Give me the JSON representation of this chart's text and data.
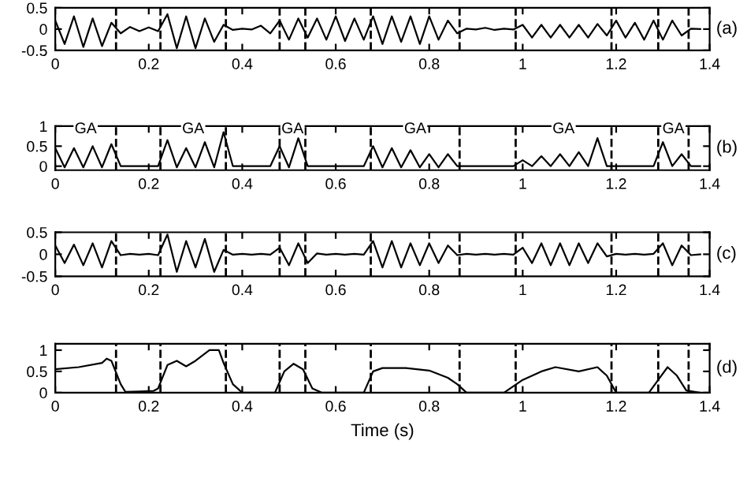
{
  "chart_data": [
    {
      "type": "line",
      "color": "#000000",
      "line_style": "solid",
      "x": [
        0,
        0.02,
        0.04,
        0.06,
        0.08,
        0.1,
        0.12,
        0.14,
        0.16,
        0.18,
        0.2,
        0.22,
        0.24,
        0.26,
        0.28,
        0.3,
        0.32,
        0.34,
        0.36,
        0.38,
        0.4,
        0.42,
        0.44,
        0.46,
        0.48,
        0.5,
        0.52,
        0.54,
        0.56,
        0.58,
        0.6,
        0.62,
        0.64,
        0.66,
        0.68,
        0.7,
        0.72,
        0.74,
        0.76,
        0.78,
        0.8,
        0.82,
        0.84,
        0.86,
        0.88,
        0.9,
        0.92,
        0.94,
        0.96,
        0.98,
        1.0,
        1.02,
        1.04,
        1.06,
        1.08,
        1.1,
        1.12,
        1.14,
        1.16,
        1.18,
        1.2,
        1.22,
        1.24,
        1.26,
        1.28,
        1.3,
        1.32,
        1.34,
        1.36,
        1.38
      ],
      "values": [
        0.2,
        -0.35,
        0.3,
        -0.42,
        0.25,
        -0.4,
        0.15,
        -0.1,
        0.05,
        -0.05,
        0.04,
        -0.05,
        0.35,
        -0.45,
        0.3,
        -0.45,
        0.25,
        -0.3,
        0.1,
        -0.02,
        0.01,
        -0.01,
        0.08,
        -0.1,
        0.2,
        -0.25,
        0.25,
        -0.2,
        0.25,
        -0.25,
        0.3,
        -0.28,
        0.25,
        -0.25,
        0.3,
        -0.35,
        0.3,
        -0.3,
        0.3,
        -0.35,
        0.3,
        -0.25,
        0.2,
        -0.1,
        0.01,
        -0.01,
        0.03,
        -0.02,
        0.01,
        -0.01,
        0.1,
        -0.2,
        0.1,
        -0.2,
        0.1,
        -0.2,
        0.1,
        -0.2,
        0.12,
        -0.15,
        0.2,
        -0.2,
        0.15,
        -0.25,
        0.2,
        -0.25,
        0.2,
        -0.15,
        0.01,
        0
      ],
      "xlim": [
        0,
        1.4
      ],
      "xticks": [
        0,
        0.2,
        0.4,
        0.6,
        0.8,
        1,
        1.2,
        1.4
      ],
      "ylim": [
        -0.5,
        0.5
      ],
      "yticks": [
        -0.5,
        0,
        0.5
      ],
      "ref_lines": [
        {
          "axis": "x",
          "value": 0.13
        },
        {
          "axis": "x",
          "value": 0.225
        },
        {
          "axis": "x",
          "value": 0.365
        },
        {
          "axis": "x",
          "value": 0.48
        },
        {
          "axis": "x",
          "value": 0.535
        },
        {
          "axis": "x",
          "value": 0.675
        },
        {
          "axis": "x",
          "value": 0.865
        },
        {
          "axis": "x",
          "value": 0.985
        },
        {
          "axis": "x",
          "value": 1.19
        },
        {
          "axis": "x",
          "value": 1.29
        },
        {
          "axis": "x",
          "value": 1.355
        }
      ],
      "annotations": [
        "(a)"
      ]
    },
    {
      "type": "line",
      "color": "#000000",
      "line_style": "solid",
      "x": [
        0,
        0.02,
        0.04,
        0.06,
        0.08,
        0.1,
        0.12,
        0.14,
        0.16,
        0.18,
        0.2,
        0.22,
        0.24,
        0.26,
        0.28,
        0.3,
        0.32,
        0.34,
        0.36,
        0.38,
        0.4,
        0.42,
        0.44,
        0.46,
        0.48,
        0.5,
        0.52,
        0.54,
        0.56,
        0.58,
        0.6,
        0.62,
        0.64,
        0.66,
        0.68,
        0.7,
        0.72,
        0.74,
        0.76,
        0.78,
        0.8,
        0.82,
        0.84,
        0.86,
        0.88,
        0.9,
        0.92,
        0.94,
        0.96,
        0.98,
        1.0,
        1.02,
        1.04,
        1.06,
        1.08,
        1.1,
        1.12,
        1.14,
        1.16,
        1.18,
        1.2,
        1.22,
        1.24,
        1.26,
        1.28,
        1.3,
        1.32,
        1.34,
        1.36,
        1.38
      ],
      "values": [
        0.45,
        -0.03,
        0.45,
        -0.03,
        0.5,
        -0.03,
        0.55,
        0,
        0,
        0,
        0,
        0,
        0.65,
        -0.03,
        0.45,
        -0.03,
        0.6,
        -0.03,
        0.85,
        0,
        0,
        0,
        0,
        0,
        0.5,
        -0.03,
        0.7,
        0,
        0,
        0,
        0,
        0,
        0,
        0,
        0.5,
        -0.03,
        0.45,
        -0.03,
        0.4,
        -0.03,
        0.3,
        -0.03,
        0.3,
        0,
        0,
        0,
        0,
        0,
        0,
        0,
        0.15,
        0,
        0.25,
        0,
        0.3,
        0,
        0.35,
        0,
        0.7,
        0,
        0,
        0,
        0,
        0,
        0,
        0.6,
        0,
        0.3,
        0,
        0
      ],
      "xlim": [
        0,
        1.4
      ],
      "xticks": [
        0,
        0.2,
        0.4,
        0.6,
        0.8,
        1,
        1.2,
        1.4
      ],
      "ylim": [
        -0.1,
        1
      ],
      "yticks": [
        0,
        0.5,
        1
      ],
      "ref_lines": [
        {
          "axis": "x",
          "value": 0.13
        },
        {
          "axis": "x",
          "value": 0.225
        },
        {
          "axis": "x",
          "value": 0.365
        },
        {
          "axis": "x",
          "value": 0.48
        },
        {
          "axis": "x",
          "value": 0.535
        },
        {
          "axis": "x",
          "value": 0.675
        },
        {
          "axis": "x",
          "value": 0.865
        },
        {
          "axis": "x",
          "value": 0.985
        },
        {
          "axis": "x",
          "value": 1.19
        },
        {
          "axis": "x",
          "value": 1.29
        },
        {
          "axis": "x",
          "value": 1.355
        }
      ],
      "annotations": [
        "GA",
        "GA",
        "GA",
        "GA",
        "GA",
        "GA",
        "(b)"
      ]
    },
    {
      "type": "line",
      "color": "#000000",
      "line_style": "solid",
      "x": [
        0,
        0.02,
        0.04,
        0.06,
        0.08,
        0.1,
        0.12,
        0.14,
        0.16,
        0.18,
        0.2,
        0.22,
        0.24,
        0.26,
        0.28,
        0.3,
        0.32,
        0.34,
        0.36,
        0.38,
        0.4,
        0.42,
        0.44,
        0.46,
        0.48,
        0.5,
        0.52,
        0.54,
        0.56,
        0.58,
        0.6,
        0.62,
        0.64,
        0.66,
        0.68,
        0.7,
        0.72,
        0.74,
        0.76,
        0.78,
        0.8,
        0.82,
        0.84,
        0.86,
        0.88,
        0.9,
        0.92,
        0.94,
        0.96,
        0.98,
        1.0,
        1.02,
        1.04,
        1.06,
        1.08,
        1.1,
        1.12,
        1.14,
        1.16,
        1.18,
        1.2,
        1.22,
        1.24,
        1.26,
        1.28,
        1.3,
        1.32,
        1.34,
        1.36,
        1.38
      ],
      "values": [
        0.2,
        -0.2,
        0.22,
        -0.25,
        0.25,
        -0.3,
        0.3,
        -0.02,
        0.01,
        -0.01,
        0.01,
        -0.02,
        0.45,
        -0.4,
        0.3,
        -0.3,
        0.35,
        -0.4,
        0.1,
        -0.01,
        0.01,
        -0.01,
        0.01,
        -0.01,
        0.15,
        -0.25,
        0.25,
        -0.2,
        0.02,
        -0.01,
        0.01,
        -0.01,
        0.01,
        -0.01,
        0.3,
        -0.3,
        0.3,
        -0.3,
        0.25,
        -0.25,
        0.25,
        -0.2,
        0.2,
        -0.02,
        0.01,
        -0.01,
        0.01,
        -0.01,
        0.01,
        -0.01,
        0.15,
        -0.2,
        0.25,
        -0.25,
        0.25,
        -0.25,
        0.25,
        -0.2,
        0.25,
        -0.05,
        0.01,
        -0.01,
        0.01,
        -0.01,
        0.01,
        0.25,
        -0.25,
        0.2,
        -0.02,
        0
      ],
      "xlim": [
        0,
        1.4
      ],
      "xticks": [
        0,
        0.2,
        0.4,
        0.6,
        0.8,
        1,
        1.2,
        1.4
      ],
      "ylim": [
        -0.5,
        0.5
      ],
      "yticks": [
        -0.5,
        0,
        0.5
      ],
      "ref_lines": [
        {
          "axis": "x",
          "value": 0.13
        },
        {
          "axis": "x",
          "value": 0.225
        },
        {
          "axis": "x",
          "value": 0.365
        },
        {
          "axis": "x",
          "value": 0.48
        },
        {
          "axis": "x",
          "value": 0.535
        },
        {
          "axis": "x",
          "value": 0.675
        },
        {
          "axis": "x",
          "value": 0.865
        },
        {
          "axis": "x",
          "value": 0.985
        },
        {
          "axis": "x",
          "value": 1.19
        },
        {
          "axis": "x",
          "value": 1.29
        },
        {
          "axis": "x",
          "value": 1.355
        }
      ],
      "annotations": [
        "(c)"
      ]
    },
    {
      "type": "line",
      "color": "#000000",
      "line_style": "solid",
      "xlabel": "Time (s)",
      "x": [
        0,
        0.05,
        0.1,
        0.11,
        0.12,
        0.14,
        0.15,
        0.18,
        0.21,
        0.22,
        0.24,
        0.26,
        0.28,
        0.3,
        0.33,
        0.35,
        0.36,
        0.38,
        0.4,
        0.47,
        0.49,
        0.51,
        0.53,
        0.55,
        0.57,
        0.66,
        0.68,
        0.7,
        0.75,
        0.8,
        0.84,
        0.86,
        0.88,
        0.96,
        1.0,
        1.04,
        1.07,
        1.12,
        1.16,
        1.18,
        1.2,
        1.27,
        1.29,
        1.31,
        1.33,
        1.35,
        1.38
      ],
      "values": [
        0.55,
        0.6,
        0.7,
        0.8,
        0.75,
        0.2,
        0.02,
        0.03,
        0.04,
        0.1,
        0.65,
        0.75,
        0.62,
        0.75,
        1.0,
        1.0,
        0.7,
        0.2,
        0,
        0,
        0.5,
        0.68,
        0.55,
        0.1,
        0,
        0,
        0.5,
        0.58,
        0.58,
        0.52,
        0.35,
        0.2,
        0,
        0,
        0.3,
        0.5,
        0.6,
        0.5,
        0.6,
        0.4,
        0,
        0,
        0.3,
        0.6,
        0.4,
        0.05,
        0
      ],
      "xlim": [
        0,
        1.4
      ],
      "xticks": [
        0,
        0.2,
        0.4,
        0.6,
        0.8,
        1,
        1.2,
        1.4
      ],
      "ylim": [
        0,
        1.15
      ],
      "yticks": [
        0,
        0.5,
        1
      ],
      "ref_lines": [
        {
          "axis": "x",
          "value": 0.13
        },
        {
          "axis": "x",
          "value": 0.225
        },
        {
          "axis": "x",
          "value": 0.365
        },
        {
          "axis": "x",
          "value": 0.48
        },
        {
          "axis": "x",
          "value": 0.535
        },
        {
          "axis": "x",
          "value": 0.675
        },
        {
          "axis": "x",
          "value": 0.865
        },
        {
          "axis": "x",
          "value": 0.985
        },
        {
          "axis": "x",
          "value": 1.19
        },
        {
          "axis": "x",
          "value": 1.29
        },
        {
          "axis": "x",
          "value": 1.355
        }
      ],
      "annotations": [
        "(d)"
      ]
    }
  ]
}
